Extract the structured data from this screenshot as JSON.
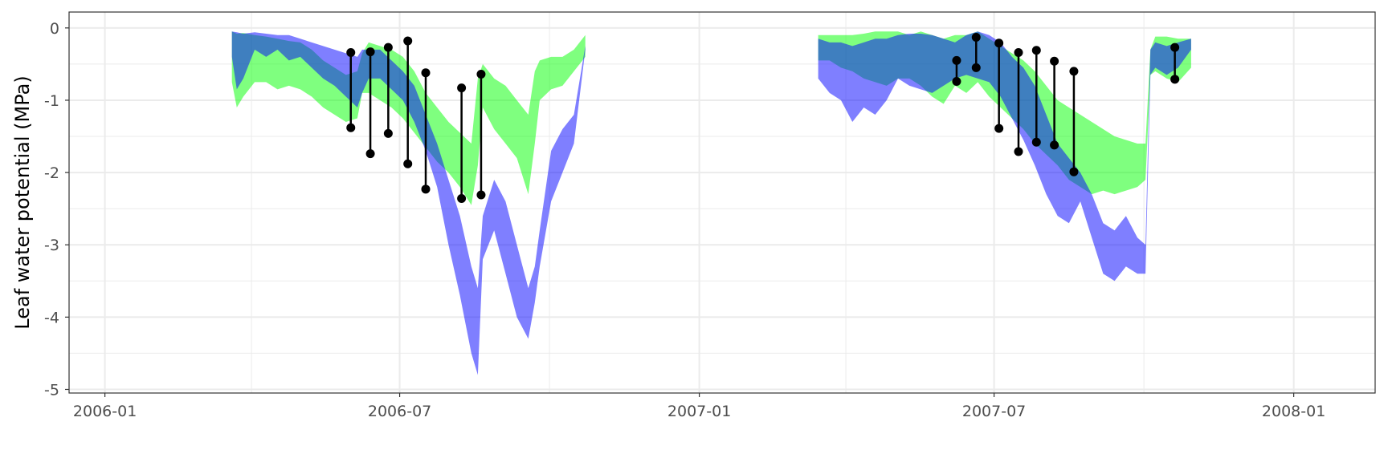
{
  "chart_data": {
    "type": "area",
    "title": "",
    "xlabel": "",
    "ylabel": "Leaf water potential (MPa)",
    "x_type": "date",
    "xlim": [
      "2005-12-10",
      "2008-02-20"
    ],
    "ylim": [
      -5.05,
      0.22
    ],
    "x_ticks": [
      "2006-01-01",
      "2006-07-01",
      "2007-01-01",
      "2007-07-01",
      "2008-01-01"
    ],
    "x_tick_labels": [
      "2006-01",
      "2006-07",
      "2007-01",
      "2007-07",
      "2008-01"
    ],
    "y_ticks": [
      0,
      -1,
      -2,
      -3,
      -4,
      -5
    ],
    "y_tick_labels": [
      "0",
      "-1",
      "-2",
      "-3",
      "-4",
      "-5"
    ],
    "grid": true,
    "colors": {
      "green_band": "#00ff00",
      "blue_band": "#0000ff",
      "blue_line": "#3f3ff0",
      "observed": "#000000",
      "panel_border": "#333333",
      "grid": "#ebebeb"
    },
    "series": [
      {
        "color": "green",
        "segments": [
          [
            [
              "2006-03-20",
              -0.05,
              -0.75
            ],
            [
              "2006-03-23",
              -0.08,
              -1.1
            ],
            [
              "2006-03-27",
              -0.07,
              -0.95
            ],
            [
              "2006-04-03",
              -0.1,
              -0.75
            ],
            [
              "2006-04-10",
              -0.12,
              -0.75
            ],
            [
              "2006-04-17",
              -0.15,
              -0.85
            ],
            [
              "2006-04-24",
              -0.18,
              -0.8
            ],
            [
              "2006-05-01",
              -0.2,
              -0.85
            ],
            [
              "2006-05-08",
              -0.3,
              -0.95
            ],
            [
              "2006-05-15",
              -0.45,
              -1.1
            ],
            [
              "2006-05-22",
              -0.55,
              -1.2
            ],
            [
              "2006-05-29",
              -0.65,
              -1.3
            ],
            [
              "2006-06-05",
              -0.6,
              -1.25
            ],
            [
              "2006-06-08",
              -0.35,
              -0.9
            ],
            [
              "2006-06-12",
              -0.2,
              -0.9
            ],
            [
              "2006-06-19",
              -0.25,
              -1.0
            ],
            [
              "2006-06-26",
              -0.3,
              -1.1
            ],
            [
              "2006-07-03",
              -0.4,
              -1.25
            ],
            [
              "2006-07-10",
              -0.6,
              -1.45
            ],
            [
              "2006-07-17",
              -0.9,
              -1.65
            ],
            [
              "2006-07-24",
              -1.1,
              -1.85
            ],
            [
              "2006-07-31",
              -1.3,
              -2.0
            ],
            [
              "2006-08-07",
              -1.45,
              -2.2
            ],
            [
              "2006-08-14",
              -1.6,
              -2.45
            ],
            [
              "2006-08-18",
              -0.7,
              -1.9
            ],
            [
              "2006-08-21",
              -0.5,
              -1.1
            ],
            [
              "2006-08-28",
              -0.7,
              -1.4
            ],
            [
              "2006-09-04",
              -0.8,
              -1.6
            ],
            [
              "2006-09-11",
              -1.0,
              -1.8
            ],
            [
              "2006-09-18",
              -1.2,
              -2.3
            ],
            [
              "2006-09-22",
              -0.6,
              -1.6
            ],
            [
              "2006-09-25",
              -0.45,
              -1.0
            ],
            [
              "2006-10-02",
              -0.4,
              -0.85
            ],
            [
              "2006-10-09",
              -0.4,
              -0.8
            ],
            [
              "2006-10-16",
              -0.3,
              -0.6
            ],
            [
              "2006-10-23",
              -0.1,
              -0.4
            ]
          ],
          [
            [
              "2007-03-15",
              -0.1,
              -0.45
            ],
            [
              "2007-03-22",
              -0.1,
              -0.45
            ],
            [
              "2007-03-29",
              -0.1,
              -0.55
            ],
            [
              "2007-04-05",
              -0.1,
              -0.6
            ],
            [
              "2007-04-12",
              -0.08,
              -0.7
            ],
            [
              "2007-04-19",
              -0.05,
              -0.75
            ],
            [
              "2007-04-26",
              -0.05,
              -0.8
            ],
            [
              "2007-05-03",
              -0.05,
              -0.7
            ],
            [
              "2007-05-10",
              -0.1,
              -0.7
            ],
            [
              "2007-05-17",
              -0.05,
              -0.8
            ],
            [
              "2007-05-24",
              -0.1,
              -0.95
            ],
            [
              "2007-05-31",
              -0.15,
              -1.05
            ],
            [
              "2007-06-07",
              -0.1,
              -0.8
            ],
            [
              "2007-06-14",
              -0.1,
              -0.9
            ],
            [
              "2007-06-21",
              -0.05,
              -0.75
            ],
            [
              "2007-06-28",
              -0.15,
              -0.95
            ],
            [
              "2007-07-05",
              -0.25,
              -1.1
            ],
            [
              "2007-07-12",
              -0.35,
              -1.25
            ],
            [
              "2007-07-19",
              -0.45,
              -1.4
            ],
            [
              "2007-07-26",
              -0.6,
              -1.6
            ],
            [
              "2007-08-02",
              -0.8,
              -1.75
            ],
            [
              "2007-08-09",
              -1.0,
              -1.9
            ],
            [
              "2007-08-16",
              -1.1,
              -2.1
            ],
            [
              "2007-08-23",
              -1.2,
              -2.2
            ],
            [
              "2007-08-30",
              -1.3,
              -2.3
            ],
            [
              "2007-09-06",
              -1.4,
              -2.25
            ],
            [
              "2007-09-13",
              -1.5,
              -2.3
            ],
            [
              "2007-09-20",
              -1.55,
              -2.25
            ],
            [
              "2007-09-27",
              -1.6,
              -2.2
            ],
            [
              "2007-10-02",
              -1.6,
              -2.1
            ],
            [
              "2007-10-05",
              -0.3,
              -0.65
            ],
            [
              "2007-10-08",
              -0.12,
              -0.6
            ],
            [
              "2007-10-15",
              -0.12,
              -0.7
            ],
            [
              "2007-10-22",
              -0.15,
              -0.75
            ],
            [
              "2007-10-30",
              -0.15,
              -0.55
            ]
          ]
        ]
      },
      {
        "color": "blue",
        "segments": [
          [
            [
              "2006-03-20",
              -0.05,
              -0.4
            ],
            [
              "2006-03-23",
              -0.06,
              -0.85
            ],
            [
              "2006-03-27",
              -0.08,
              -0.7
            ],
            [
              "2006-04-03",
              -0.06,
              -0.3
            ],
            [
              "2006-04-10",
              -0.08,
              -0.4
            ],
            [
              "2006-04-17",
              -0.1,
              -0.3
            ],
            [
              "2006-04-24",
              -0.1,
              -0.45
            ],
            [
              "2006-05-01",
              -0.15,
              -0.4
            ],
            [
              "2006-05-08",
              -0.2,
              -0.55
            ],
            [
              "2006-05-15",
              -0.25,
              -0.7
            ],
            [
              "2006-05-22",
              -0.3,
              -0.8
            ],
            [
              "2006-05-29",
              -0.35,
              -0.95
            ],
            [
              "2006-06-05",
              -0.4,
              -1.1
            ],
            [
              "2006-06-08",
              -0.3,
              -0.9
            ],
            [
              "2006-06-12",
              -0.3,
              -0.7
            ],
            [
              "2006-06-19",
              -0.3,
              -0.7
            ],
            [
              "2006-06-26",
              -0.45,
              -0.85
            ],
            [
              "2006-07-03",
              -0.6,
              -1.0
            ],
            [
              "2006-07-10",
              -0.8,
              -1.3
            ],
            [
              "2006-07-17",
              -1.2,
              -1.7
            ],
            [
              "2006-07-24",
              -1.6,
              -2.2
            ],
            [
              "2006-07-31",
              -2.1,
              -3.0
            ],
            [
              "2006-08-07",
              -2.6,
              -3.7
            ],
            [
              "2006-08-14",
              -3.3,
              -4.5
            ],
            [
              "2006-08-18",
              -3.6,
              -4.8
            ],
            [
              "2006-08-21",
              -2.6,
              -3.2
            ],
            [
              "2006-08-28",
              -2.1,
              -2.8
            ],
            [
              "2006-09-04",
              -2.4,
              -3.4
            ],
            [
              "2006-09-11",
              -3.0,
              -4.0
            ],
            [
              "2006-09-18",
              -3.6,
              -4.3
            ],
            [
              "2006-09-22",
              -3.3,
              -3.8
            ],
            [
              "2006-09-25",
              -2.8,
              -3.3
            ],
            [
              "2006-10-02",
              -1.7,
              -2.4
            ],
            [
              "2006-10-09",
              -1.4,
              -2.0
            ],
            [
              "2006-10-16",
              -1.2,
              -1.6
            ],
            [
              "2006-10-23",
              -0.25,
              -0.3
            ]
          ],
          [
            [
              "2007-03-15",
              -0.15,
              -0.7
            ],
            [
              "2007-03-22",
              -0.2,
              -0.9
            ],
            [
              "2007-03-29",
              -0.2,
              -1.0
            ],
            [
              "2007-04-05",
              -0.25,
              -1.3
            ],
            [
              "2007-04-12",
              -0.2,
              -1.1
            ],
            [
              "2007-04-19",
              -0.15,
              -1.2
            ],
            [
              "2007-04-26",
              -0.15,
              -1.0
            ],
            [
              "2007-05-03",
              -0.1,
              -0.7
            ],
            [
              "2007-05-10",
              -0.08,
              -0.8
            ],
            [
              "2007-05-17",
              -0.08,
              -0.85
            ],
            [
              "2007-05-24",
              -0.1,
              -0.9
            ],
            [
              "2007-05-31",
              -0.15,
              -0.8
            ],
            [
              "2007-06-07",
              -0.2,
              -0.7
            ],
            [
              "2007-06-14",
              -0.1,
              -0.65
            ],
            [
              "2007-06-21",
              -0.05,
              -0.7
            ],
            [
              "2007-06-28",
              -0.1,
              -0.75
            ],
            [
              "2007-07-05",
              -0.2,
              -0.95
            ],
            [
              "2007-07-12",
              -0.4,
              -1.25
            ],
            [
              "2007-07-19",
              -0.55,
              -1.55
            ],
            [
              "2007-07-26",
              -0.8,
              -1.9
            ],
            [
              "2007-08-02",
              -1.2,
              -2.3
            ],
            [
              "2007-08-09",
              -1.6,
              -2.6
            ],
            [
              "2007-08-16",
              -1.8,
              -2.7
            ],
            [
              "2007-08-23",
              -2.0,
              -2.4
            ],
            [
              "2007-08-30",
              -2.3,
              -2.9
            ],
            [
              "2007-09-06",
              -2.7,
              -3.4
            ],
            [
              "2007-09-13",
              -2.8,
              -3.5
            ],
            [
              "2007-09-20",
              -2.6,
              -3.3
            ],
            [
              "2007-09-27",
              -2.9,
              -3.4
            ],
            [
              "2007-10-02",
              -3.0,
              -3.4
            ],
            [
              "2007-10-05",
              -0.3,
              -0.65
            ],
            [
              "2007-10-08",
              -0.2,
              -0.55
            ],
            [
              "2007-10-15",
              -0.25,
              -0.65
            ],
            [
              "2007-10-22",
              -0.2,
              -0.55
            ],
            [
              "2007-10-30",
              -0.15,
              -0.3
            ]
          ]
        ]
      }
    ],
    "observations": [
      {
        "date": "2006-06-01",
        "max": -0.34,
        "min": -1.38
      },
      {
        "date": "2006-06-13",
        "max": -0.33,
        "min": -1.74
      },
      {
        "date": "2006-06-24",
        "max": -0.27,
        "min": -1.46
      },
      {
        "date": "2006-07-06",
        "max": -0.18,
        "min": -1.88
      },
      {
        "date": "2006-07-17",
        "max": -0.62,
        "min": -2.23
      },
      {
        "date": "2006-08-08",
        "max": -0.83,
        "min": -2.36
      },
      {
        "date": "2006-08-20",
        "max": -0.64,
        "min": -2.31
      },
      {
        "date": "2007-06-08",
        "max": -0.45,
        "min": -0.74
      },
      {
        "date": "2007-06-20",
        "max": -0.13,
        "min": -0.55
      },
      {
        "date": "2007-07-04",
        "max": -0.21,
        "min": -1.39
      },
      {
        "date": "2007-07-16",
        "max": -0.34,
        "min": -1.71
      },
      {
        "date": "2007-07-27",
        "max": -0.31,
        "min": -1.58
      },
      {
        "date": "2007-08-07",
        "max": -0.46,
        "min": -1.62
      },
      {
        "date": "2007-08-19",
        "max": -0.6,
        "min": -1.99
      },
      {
        "date": "2007-10-20",
        "max": -0.27,
        "min": -0.71
      }
    ]
  }
}
